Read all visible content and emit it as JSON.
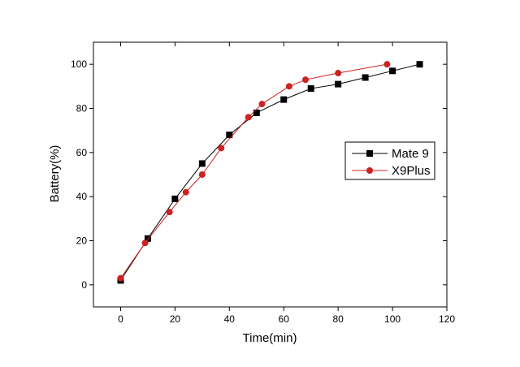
{
  "chart_data": {
    "type": "line",
    "title": "",
    "xlabel": "Time(min)",
    "ylabel": "Battery(%)",
    "xlim": [
      -10,
      120
    ],
    "ylim": [
      -10,
      110
    ],
    "xticks": [
      0,
      20,
      40,
      60,
      80,
      100,
      120
    ],
    "yticks": [
      0,
      20,
      40,
      60,
      80,
      100
    ],
    "grid": false,
    "legend_position": "right",
    "series": [
      {
        "name": "Mate 9",
        "color": "#000000",
        "marker": "square",
        "x": [
          0,
          10,
          20,
          30,
          40,
          50,
          60,
          70,
          80,
          90,
          100,
          110
        ],
        "y": [
          2,
          21,
          39,
          55,
          68,
          78,
          84,
          89,
          91,
          94,
          97,
          100
        ]
      },
      {
        "name": "X9Plus",
        "color": "#cc2222",
        "marker": "circle",
        "x": [
          0,
          9,
          18,
          24,
          30,
          37,
          47,
          52,
          62,
          68,
          80,
          98
        ],
        "y": [
          3,
          19,
          33,
          42,
          50,
          62,
          76,
          82,
          90,
          93,
          96,
          100
        ]
      }
    ]
  }
}
